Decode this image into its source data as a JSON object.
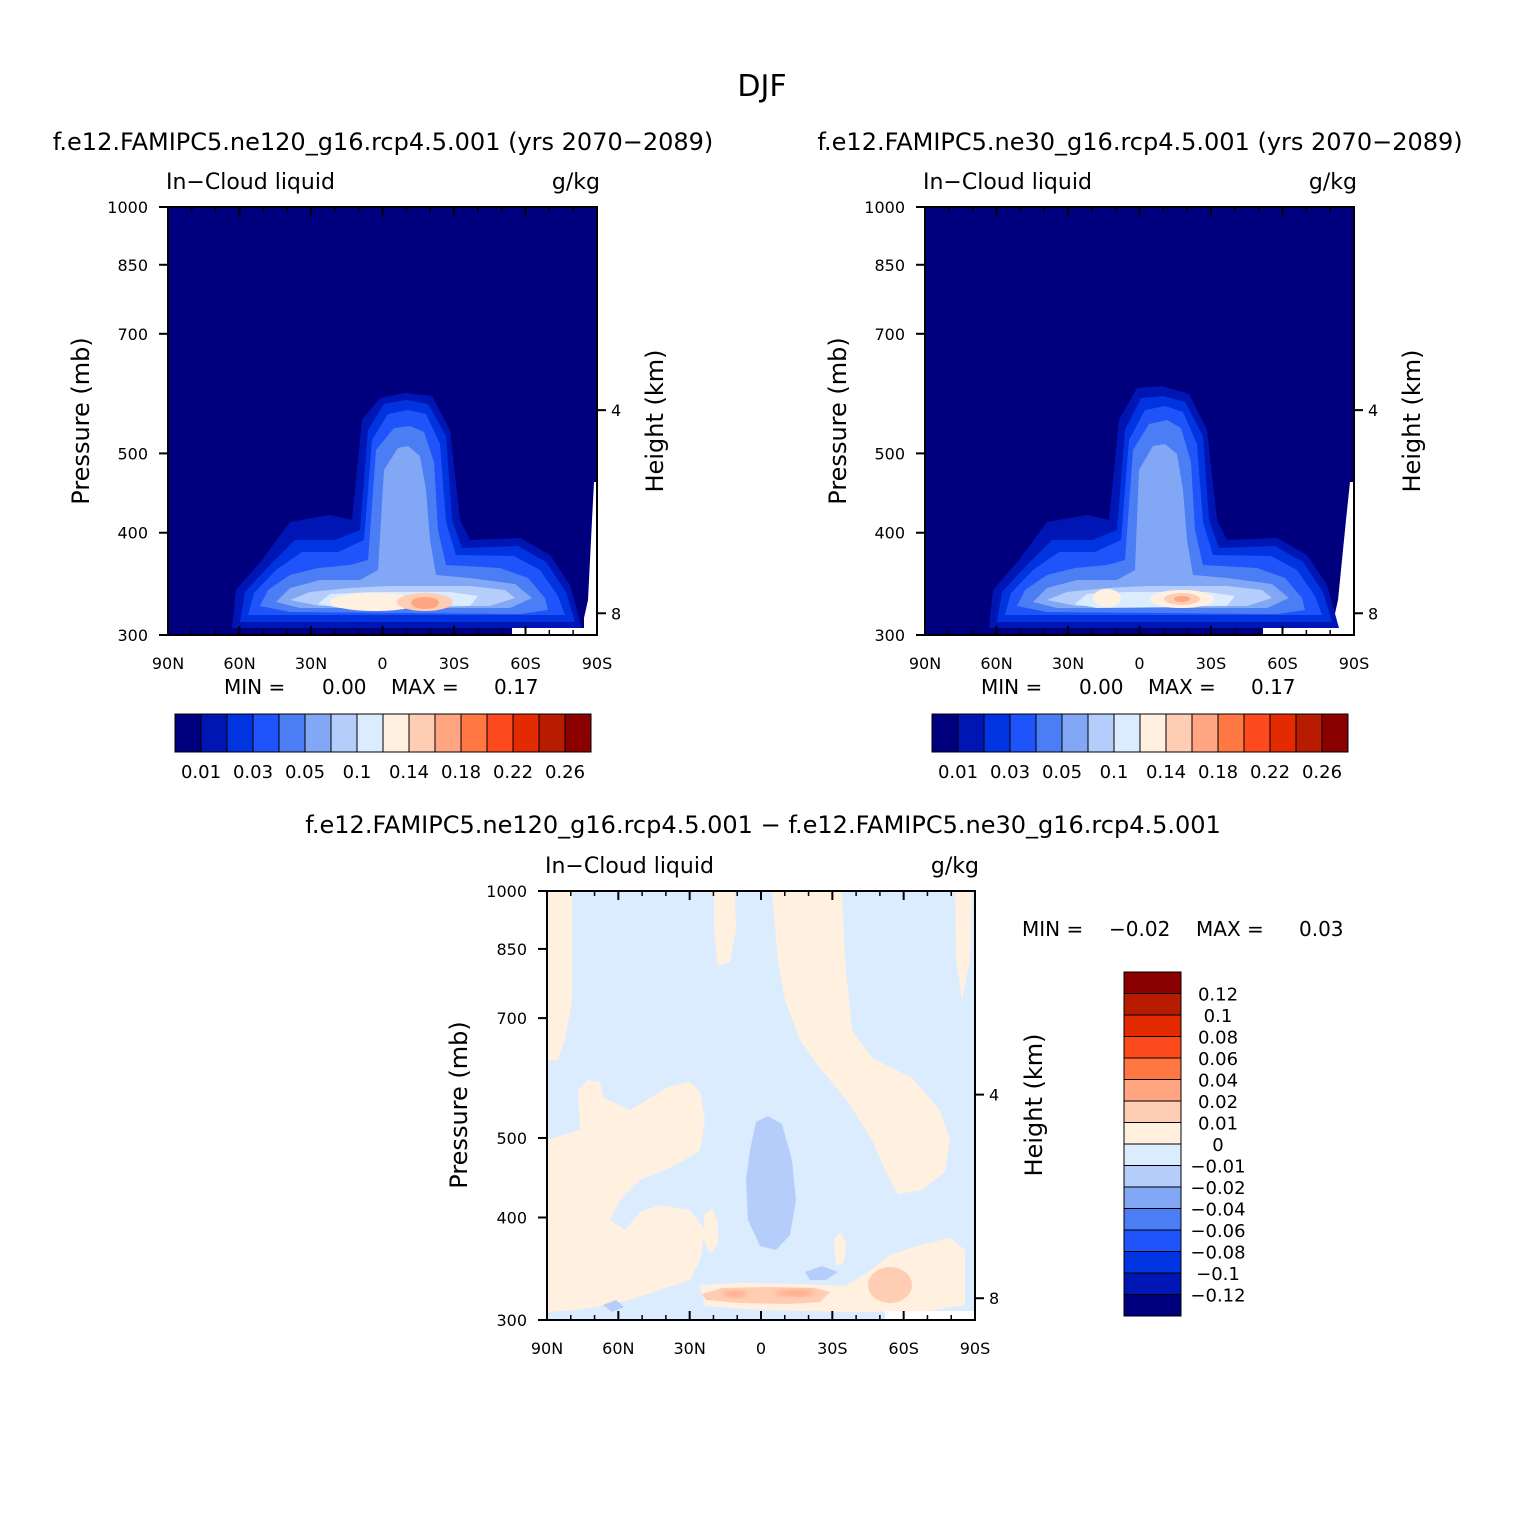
{
  "figure": {
    "title": "DJF",
    "colors": {
      "ink": "#000000",
      "background": "#ffffff",
      "missing": "#ffffff"
    }
  },
  "chart_data": [
    {
      "type": "contour",
      "id": "ne120",
      "title": "f.e12.FAMIPC5.ne120_g16.rcp4.5.001 (yrs 2070−2089)",
      "left_label": "In−Cloud liquid",
      "right_label": "g/kg",
      "xlabel": "",
      "ylabel": "Pressure (mb)",
      "y2label": "Height (km)",
      "x_ticks": [
        "90N",
        "60N",
        "30N",
        "0",
        "30S",
        "60S",
        "90S"
      ],
      "y_ticks": [
        300,
        400,
        500,
        700,
        850,
        1000
      ],
      "y2_ticks": [
        8,
        4
      ],
      "xlim": [
        90,
        -90
      ],
      "ylim": [
        1000,
        300
      ],
      "min_label": "MIN =",
      "min_value": "0.00",
      "max_label": "MAX =",
      "max_value": "0.17",
      "colorbar": {
        "orientation": "horizontal",
        "colors": [
          "#00007f",
          "#0016b4",
          "#0034e0",
          "#1e54fa",
          "#4b7ef5",
          "#82a7f5",
          "#b5cdfb",
          "#dcecff",
          "#fff0e0",
          "#ffcdb3",
          "#ffa582",
          "#ff7843",
          "#fc4a1c",
          "#e32a00",
          "#b81c00",
          "#8b0000"
        ],
        "labels": [
          "0.01",
          "0.03",
          "0.05",
          "0.1",
          "0.14",
          "0.18",
          "0.22",
          "0.26"
        ]
      }
    },
    {
      "type": "contour",
      "id": "ne30",
      "title": "f.e12.FAMIPC5.ne30_g16.rcp4.5.001 (yrs 2070−2089)",
      "left_label": "In−Cloud liquid",
      "right_label": "g/kg",
      "xlabel": "",
      "ylabel": "Pressure (mb)",
      "y2label": "Height (km)",
      "x_ticks": [
        "90N",
        "60N",
        "30N",
        "0",
        "30S",
        "60S",
        "90S"
      ],
      "y_ticks": [
        300,
        400,
        500,
        700,
        850,
        1000
      ],
      "y2_ticks": [
        8,
        4
      ],
      "xlim": [
        90,
        -90
      ],
      "ylim": [
        1000,
        300
      ],
      "min_label": "MIN =",
      "min_value": "0.00",
      "max_label": "MAX =",
      "max_value": "0.17",
      "colorbar": {
        "orientation": "horizontal",
        "colors": [
          "#00007f",
          "#0016b4",
          "#0034e0",
          "#1e54fa",
          "#4b7ef5",
          "#82a7f5",
          "#b5cdfb",
          "#dcecff",
          "#fff0e0",
          "#ffcdb3",
          "#ffa582",
          "#ff7843",
          "#fc4a1c",
          "#e32a00",
          "#b81c00",
          "#8b0000"
        ],
        "labels": [
          "0.01",
          "0.03",
          "0.05",
          "0.1",
          "0.14",
          "0.18",
          "0.22",
          "0.26"
        ]
      }
    },
    {
      "type": "contour",
      "id": "diff",
      "title": "f.e12.FAMIPC5.ne120_g16.rcp4.5.001 − f.e12.FAMIPC5.ne30_g16.rcp4.5.001",
      "left_label": "In−Cloud liquid",
      "right_label": "g/kg",
      "xlabel": "",
      "ylabel": "Pressure (mb)",
      "y2label": "Height (km)",
      "x_ticks": [
        "90N",
        "60N",
        "30N",
        "0",
        "30S",
        "60S",
        "90S"
      ],
      "y_ticks": [
        300,
        400,
        500,
        700,
        850,
        1000
      ],
      "y2_ticks": [
        8,
        4
      ],
      "xlim": [
        90,
        -90
      ],
      "ylim": [
        1000,
        300
      ],
      "min_label": "MIN =",
      "min_value": "−0.02",
      "max_label": "MAX =",
      "max_value": "0.03",
      "colorbar": {
        "orientation": "vertical",
        "colors": [
          "#00007f",
          "#0016b4",
          "#0034e0",
          "#1e54fa",
          "#4b7ef5",
          "#82a7f5",
          "#b5cdfb",
          "#dcecff",
          "#fff0e0",
          "#ffcdb3",
          "#ffa582",
          "#ff7843",
          "#fc4a1c",
          "#e32a00",
          "#b81c00",
          "#8b0000"
        ],
        "labels": [
          "0.12",
          "0.1",
          "0.08",
          "0.06",
          "0.04",
          "0.02",
          "0.01",
          "0",
          "−0.01",
          "−0.02",
          "−0.04",
          "−0.06",
          "−0.08",
          "−0.1",
          "−0.12"
        ]
      }
    }
  ]
}
